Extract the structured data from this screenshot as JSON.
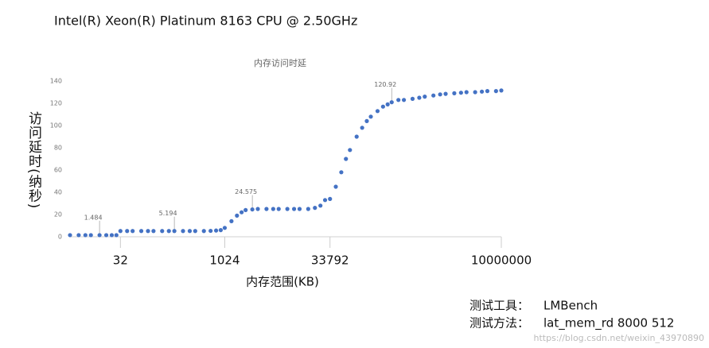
{
  "chart_data": {
    "type": "scatter",
    "title": "Intel(R) Xeon(R) Platinum 8163 CPU @ 2.50GHz",
    "subtitle": "内存访问时延",
    "y_label": "访问延时(纳秒)",
    "x_label": "内存范围(KB)",
    "x_log": true,
    "xlim": [
      6,
      10000000
    ],
    "xticks": [
      32,
      1024,
      33792,
      10000000
    ],
    "ylim": [
      0,
      140
    ],
    "yticks": [
      0,
      20,
      40,
      60,
      80,
      100,
      120,
      140
    ],
    "series": [
      {
        "color": "#4472c4",
        "x": [
          6,
          8,
          10,
          12,
          16,
          20,
          24,
          28,
          32,
          40,
          48,
          64,
          80,
          96,
          128,
          160,
          192,
          256,
          320,
          384,
          512,
          640,
          768,
          896,
          1024,
          1280,
          1536,
          1792,
          2048,
          2560,
          3072,
          4096,
          5120,
          6144,
          8192,
          10240,
          12288,
          16384,
          20480,
          24576,
          28672,
          33792,
          40960,
          49152,
          57344,
          65536,
          81920,
          98304,
          114688,
          131072,
          163840,
          196608,
          229376,
          262144,
          327680,
          393216,
          524288,
          655360,
          786432,
          1048576,
          1310720,
          1572864,
          2097152,
          2621440,
          3145728,
          4194304,
          5242880,
          6291456,
          8388608,
          10000000
        ],
        "values": [
          1.484,
          1.484,
          1.484,
          1.484,
          1.484,
          1.484,
          1.484,
          1.484,
          5.194,
          5.194,
          5.194,
          5.194,
          5.194,
          5.194,
          5.194,
          5.194,
          5.194,
          5.194,
          5.194,
          5.194,
          5.194,
          5.3,
          5.6,
          6,
          8,
          14,
          19,
          22,
          24,
          24.575,
          25,
          25,
          25,
          25,
          25,
          25,
          25,
          25,
          26,
          28,
          33,
          34,
          45,
          58,
          70,
          78,
          90,
          98,
          104,
          108,
          113,
          117,
          119,
          120.92,
          123,
          123,
          124,
          125,
          126,
          127,
          128,
          128.5,
          129,
          129.5,
          130,
          130,
          130.5,
          131,
          131,
          131.5
        ]
      }
    ],
    "annotations": [
      {
        "text": "1.484",
        "x": 16,
        "y": 1.484
      },
      {
        "text": "5.194",
        "x": 192,
        "y": 5.194
      },
      {
        "text": "24.575",
        "x": 2560,
        "y": 24.575
      },
      {
        "text": "120.92",
        "x": 262144,
        "y": 120.92
      }
    ]
  },
  "footer": {
    "tool_label": "测试工具：",
    "tool": "LMBench",
    "method_label": "测试方法：",
    "method": "lat_mem_rd 8000 512",
    "watermark": "https://blog.csdn.net/weixin_43970890"
  }
}
